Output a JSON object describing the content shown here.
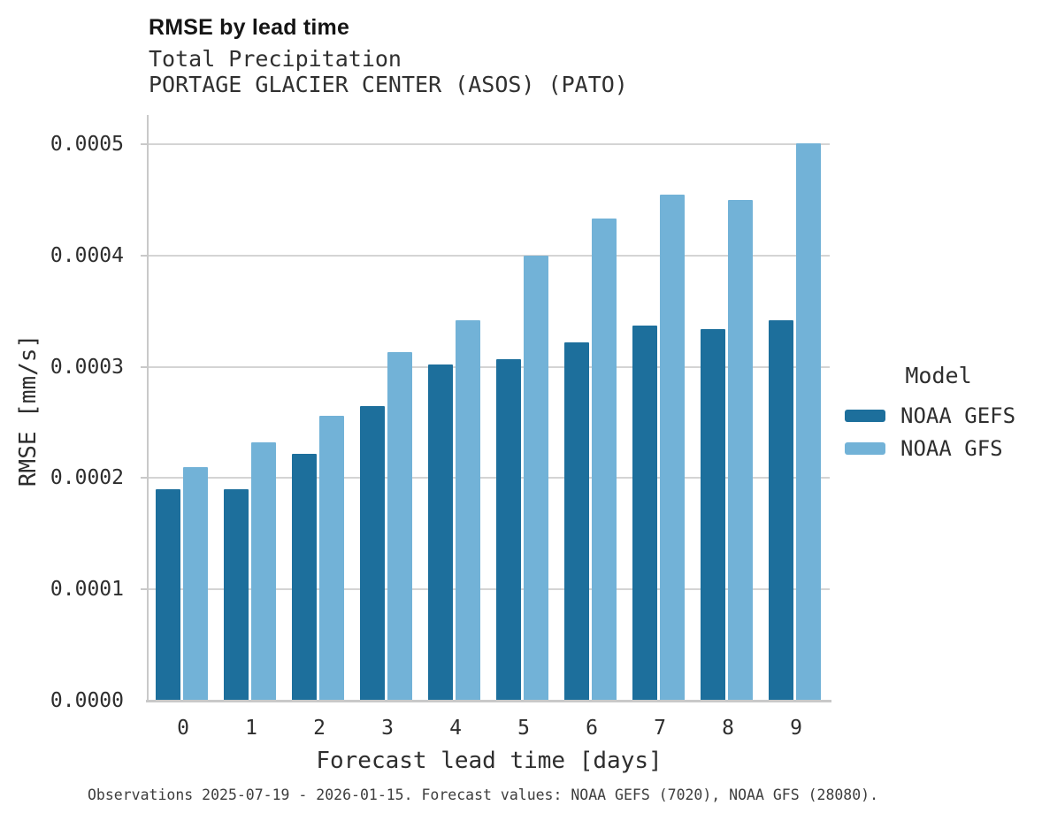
{
  "header": {
    "title": "RMSE by lead time",
    "subtitle": "Total Precipitation",
    "station": "PORTAGE GLACIER CENTER (ASOS) (PATO)"
  },
  "legend": {
    "title": "Model"
  },
  "caption": "Observations 2025-07-19 - 2026-01-15. Forecast values: NOAA GEFS (7020), NOAA GFS (28080).",
  "chart_data": {
    "type": "bar",
    "title": "RMSE by lead time",
    "subtitle": [
      "Total Precipitation",
      "PORTAGE GLACIER CENTER (ASOS) (PATO)"
    ],
    "xlabel": "Forecast lead time [days]",
    "ylabel": "RMSE [mm/s]",
    "categories": [
      "0",
      "1",
      "2",
      "3",
      "4",
      "5",
      "6",
      "7",
      "8",
      "9"
    ],
    "series": [
      {
        "name": "NOAA GEFS",
        "color": "#1d6f9c",
        "values": [
          0.00019,
          0.00019,
          0.000222,
          0.000265,
          0.000302,
          0.000307,
          0.000322,
          0.000337,
          0.000334,
          0.000342
        ]
      },
      {
        "name": "NOAA GFS",
        "color": "#72b2d7",
        "values": [
          0.00021,
          0.000232,
          0.000256,
          0.000313,
          0.000342,
          0.0004,
          0.000433,
          0.000455,
          0.00045,
          0.000501
        ]
      }
    ],
    "ylim": [
      0,
      0.0005
    ],
    "yticks": [
      0,
      0.0001,
      0.0002,
      0.0003,
      0.0004,
      0.0005
    ],
    "ytick_labels": [
      "0.0000",
      "0.0001",
      "0.0002",
      "0.0003",
      "0.0004",
      "0.0005"
    ],
    "grid": "horizontal",
    "legend_position": "right",
    "colors": {
      "gridline": "#d4d4d4",
      "axis": "#c9c9c9",
      "background": "#ffffff"
    }
  }
}
